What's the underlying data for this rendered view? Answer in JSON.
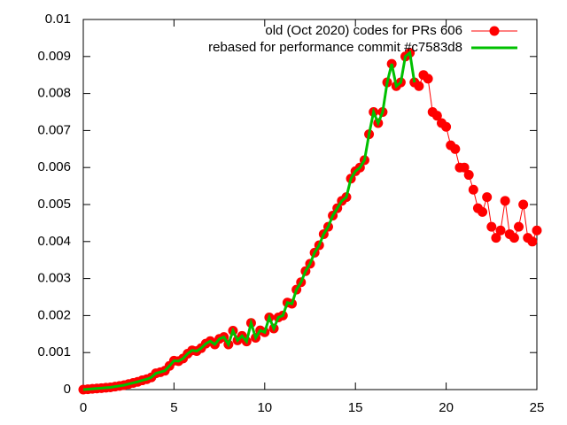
{
  "chart_data": {
    "type": "line",
    "x": [
      0,
      0.25,
      0.5,
      0.75,
      1,
      1.25,
      1.5,
      1.75,
      2,
      2.25,
      2.5,
      2.75,
      3,
      3.25,
      3.5,
      3.75,
      4,
      4.25,
      4.5,
      4.75,
      5,
      5.25,
      5.5,
      5.75,
      6,
      6.25,
      6.5,
      6.75,
      7,
      7.25,
      7.5,
      7.75,
      8,
      8.25,
      8.5,
      8.75,
      9,
      9.25,
      9.5,
      9.75,
      10,
      10.25,
      10.5,
      10.75,
      11,
      11.25,
      11.5,
      11.75,
      12,
      12.25,
      12.5,
      12.75,
      13,
      13.25,
      13.5,
      13.75,
      14,
      14.25,
      14.5,
      14.75,
      15,
      15.25,
      15.5,
      15.75,
      16,
      16.25,
      16.5,
      16.75,
      17,
      17.25,
      17.5,
      17.75,
      18,
      18.25,
      18.5,
      18.75,
      19,
      19.25,
      19.5,
      19.75,
      20,
      20.25,
      20.5,
      20.75,
      21,
      21.25,
      21.5,
      21.75,
      22,
      22.25,
      22.5,
      22.75,
      23,
      23.25,
      23.5,
      23.75,
      24,
      24.25,
      24.5,
      24.75,
      25
    ],
    "series": [
      {
        "name": "old (Oct 2020) codes for PRs 606",
        "color": "#ff0000",
        "marker": true,
        "values": [
          0,
          1e-05,
          2e-05,
          3e-05,
          4e-05,
          5e-05,
          6e-05,
          8e-05,
          0.0001,
          0.00012,
          0.00015,
          0.00018,
          0.00021,
          0.00025,
          0.00028,
          0.00033,
          0.00044,
          0.00047,
          0.00051,
          0.00064,
          0.00078,
          0.00077,
          0.00084,
          0.00097,
          0.00106,
          0.00104,
          0.00112,
          0.00124,
          0.00131,
          0.00122,
          0.00137,
          0.00142,
          0.00122,
          0.00159,
          0.00133,
          0.00145,
          0.0013,
          0.0018,
          0.0014,
          0.0016,
          0.00155,
          0.00195,
          0.00165,
          0.00195,
          0.002,
          0.00235,
          0.00232,
          0.0027,
          0.0029,
          0.0032,
          0.0034,
          0.0037,
          0.0039,
          0.0042,
          0.0044,
          0.0047,
          0.0049,
          0.0051,
          0.0052,
          0.0057,
          0.0059,
          0.006,
          0.0062,
          0.0069,
          0.0075,
          0.0072,
          0.0075,
          0.0083,
          0.0088,
          0.0082,
          0.0083,
          0.009,
          0.0091,
          0.0083,
          0.0082,
          0.0085,
          0.0084,
          0.0075,
          0.0074,
          0.0072,
          0.0071,
          0.0066,
          0.0065,
          0.006,
          0.006,
          0.0058,
          0.0054,
          0.0049,
          0.0048,
          0.0052,
          0.0044,
          0.0041,
          0.0043,
          0.0051,
          0.0042,
          0.0041,
          0.0044,
          0.005,
          0.0041,
          0.004,
          0.0043
        ]
      },
      {
        "name": "rebased for performance commit #c7583d8",
        "color": "#00c000",
        "marker": false,
        "values": [
          0,
          1e-05,
          2e-05,
          3e-05,
          4e-05,
          5e-05,
          6e-05,
          8e-05,
          0.0001,
          0.00012,
          0.00015,
          0.00018,
          0.00021,
          0.00025,
          0.00028,
          0.00033,
          0.00044,
          0.00047,
          0.00051,
          0.00064,
          0.00078,
          0.00077,
          0.00084,
          0.00097,
          0.00106,
          0.00104,
          0.00112,
          0.00124,
          0.00131,
          0.00122,
          0.00137,
          0.00142,
          0.00122,
          0.00159,
          0.00133,
          0.00145,
          0.0013,
          0.0018,
          0.0014,
          0.0016,
          0.00155,
          0.00195,
          0.00165,
          0.00195,
          0.002,
          0.00235,
          0.00232,
          0.0027,
          0.0029,
          0.0032,
          0.0034,
          0.0037,
          0.0039,
          0.0042,
          0.0044,
          0.0047,
          0.0049,
          0.0051,
          0.0052,
          0.0057,
          0.0059,
          0.006,
          0.0062,
          0.0069,
          0.0075,
          0.0072,
          0.0075,
          0.0083,
          0.0088,
          0.0082,
          0.0083,
          0.009,
          0.0091,
          0.0083,
          null,
          null,
          null,
          null,
          null,
          null,
          null,
          null,
          null,
          null,
          null,
          null,
          null,
          null,
          null,
          null,
          null,
          null,
          null,
          null,
          null,
          null,
          null,
          null,
          null,
          null,
          null
        ]
      }
    ],
    "xlim": [
      0,
      25
    ],
    "xticks": [
      0,
      5,
      10,
      15,
      20,
      25
    ],
    "ylim": [
      0,
      0.01
    ],
    "yticks": [
      0,
      0.001,
      0.002,
      0.003,
      0.004,
      0.005,
      0.006,
      0.007,
      0.008,
      0.009,
      0.01
    ],
    "legend": "top-right"
  }
}
